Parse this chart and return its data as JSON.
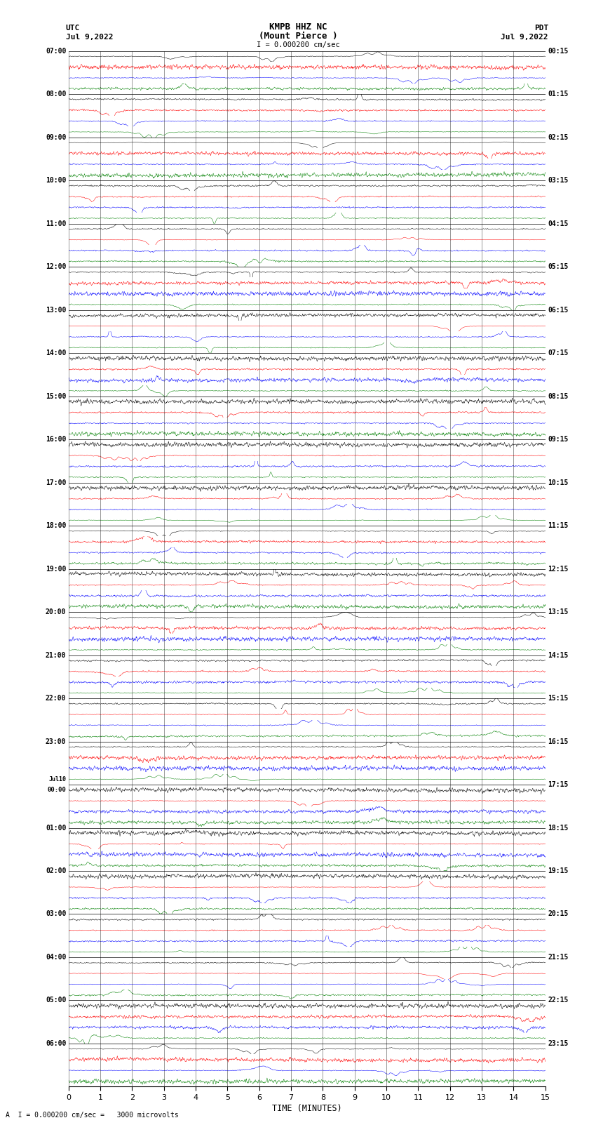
{
  "title_line1": "KMPB HHZ NC",
  "title_line2": "(Mount Pierce )",
  "scale_label": "I = 0.000200 cm/sec",
  "bottom_label": "A  I = 0.000200 cm/sec =   3000 microvolts",
  "xlabel": "TIME (MINUTES)",
  "left_header_line1": "UTC",
  "left_header_line2": "Jul 9,2022",
  "right_header_line1": "PDT",
  "right_header_line2": "Jul 9,2022",
  "left_times": [
    "07:00",
    "08:00",
    "09:00",
    "10:00",
    "11:00",
    "12:00",
    "13:00",
    "14:00",
    "15:00",
    "16:00",
    "17:00",
    "18:00",
    "19:00",
    "20:00",
    "21:00",
    "22:00",
    "23:00",
    "Jul10\n00:00",
    "01:00",
    "02:00",
    "03:00",
    "04:00",
    "05:00",
    "06:00"
  ],
  "right_times": [
    "00:15",
    "01:15",
    "02:15",
    "03:15",
    "04:15",
    "05:15",
    "06:15",
    "07:15",
    "08:15",
    "09:15",
    "10:15",
    "11:15",
    "12:15",
    "13:15",
    "14:15",
    "15:15",
    "16:15",
    "17:15",
    "18:15",
    "19:15",
    "20:15",
    "21:15",
    "22:15",
    "23:15"
  ],
  "num_rows": 24,
  "traces_per_row": 4,
  "colors": [
    "black",
    "red",
    "blue",
    "green"
  ],
  "bg_color": "white",
  "seed": 42,
  "x_ticks": [
    0,
    1,
    2,
    3,
    4,
    5,
    6,
    7,
    8,
    9,
    10,
    11,
    12,
    13,
    14,
    15
  ],
  "x_lim": [
    0,
    15
  ],
  "fig_width": 8.5,
  "fig_height": 16.13,
  "dpi": 100,
  "lw": 0.35
}
